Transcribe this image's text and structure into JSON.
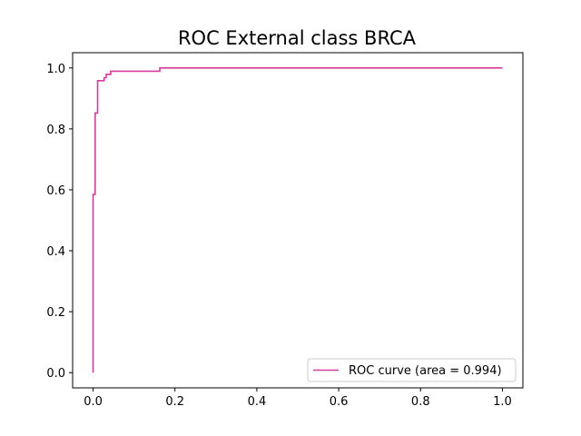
{
  "chart_data": {
    "type": "line",
    "title": "ROC External class BRCA",
    "xlabel": "",
    "ylabel": "",
    "xlim": [
      -0.05,
      1.05
    ],
    "ylim": [
      -0.05,
      1.05
    ],
    "xticks": [
      "0.0",
      "0.2",
      "0.4",
      "0.6",
      "0.8",
      "1.0"
    ],
    "xtick_values": [
      0.0,
      0.2,
      0.4,
      0.6,
      0.8,
      1.0
    ],
    "yticks": [
      "0.0",
      "0.2",
      "0.4",
      "0.6",
      "0.8",
      "1.0"
    ],
    "ytick_values": [
      0.0,
      0.2,
      0.4,
      0.6,
      0.8,
      1.0
    ],
    "grid": false,
    "legend": {
      "placement": "lower-right",
      "entries": [
        "ROC curve (area = 0.994)"
      ]
    },
    "series": [
      {
        "name": "ROC curve (area = 0.994)",
        "color": "#d63a9a",
        "x": [
          0.0,
          0.0,
          0.0,
          0.0,
          0.005,
          0.005,
          0.011,
          0.011,
          0.027,
          0.027,
          0.032,
          0.032,
          0.043,
          0.043,
          0.163,
          0.163,
          1.0
        ],
        "y": [
          0.0,
          0.585,
          0.585,
          0.585,
          0.585,
          0.852,
          0.852,
          0.958,
          0.958,
          0.968,
          0.968,
          0.979,
          0.979,
          0.989,
          0.989,
          1.0,
          1.0
        ]
      }
    ]
  }
}
